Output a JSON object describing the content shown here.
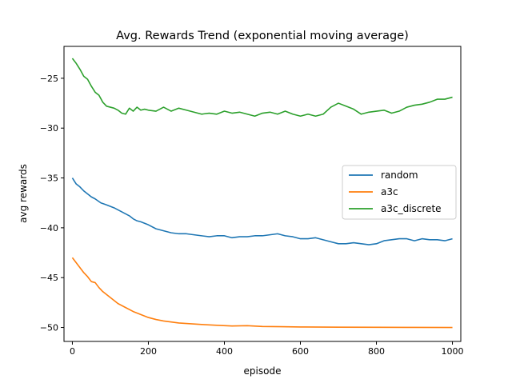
{
  "chart_data": {
    "type": "line",
    "title": "Avg. Rewards Trend (exponential moving average)",
    "xlabel": "episode",
    "ylabel": "avg rewards",
    "xlim": [
      -22,
      1022
    ],
    "ylim": [
      -51.4,
      -21.8
    ],
    "xticks": [
      0,
      200,
      400,
      600,
      800,
      1000
    ],
    "xtick_labels": [
      "0",
      "200",
      "400",
      "600",
      "800",
      "1000"
    ],
    "yticks": [
      -50,
      -45,
      -40,
      -35,
      -30,
      -25
    ],
    "ytick_labels": [
      "−50",
      "−45",
      "−40",
      "−35",
      "−30",
      "−25"
    ],
    "grid": false,
    "legend": "center-right",
    "series": [
      {
        "name": "random",
        "color": "#1f77b4",
        "x": [
          0,
          10,
          20,
          30,
          40,
          50,
          60,
          75,
          90,
          110,
          130,
          150,
          160,
          170,
          180,
          200,
          220,
          240,
          260,
          280,
          300,
          320,
          340,
          360,
          380,
          400,
          420,
          440,
          460,
          480,
          500,
          520,
          540,
          560,
          580,
          600,
          620,
          640,
          660,
          680,
          700,
          720,
          740,
          760,
          780,
          800,
          820,
          840,
          860,
          880,
          900,
          920,
          940,
          960,
          980,
          1000
        ],
        "y": [
          -35,
          -35.6,
          -35.9,
          -36.3,
          -36.6,
          -36.9,
          -37.1,
          -37.5,
          -37.7,
          -38.0,
          -38.4,
          -38.8,
          -39.1,
          -39.3,
          -39.4,
          -39.7,
          -40.1,
          -40.3,
          -40.5,
          -40.6,
          -40.6,
          -40.7,
          -40.8,
          -40.9,
          -40.8,
          -40.8,
          -41.0,
          -40.9,
          -40.9,
          -40.8,
          -40.8,
          -40.7,
          -40.6,
          -40.8,
          -40.9,
          -41.1,
          -41.1,
          -41.0,
          -41.2,
          -41.4,
          -41.6,
          -41.6,
          -41.5,
          -41.6,
          -41.7,
          -41.6,
          -41.3,
          -41.2,
          -41.1,
          -41.1,
          -41.3,
          -41.1,
          -41.2,
          -41.2,
          -41.3,
          -41.1
        ]
      },
      {
        "name": "a3c",
        "color": "#ff7f0e",
        "x": [
          0,
          10,
          20,
          30,
          40,
          50,
          60,
          70,
          80,
          100,
          120,
          140,
          160,
          180,
          200,
          220,
          240,
          260,
          280,
          300,
          340,
          380,
          420,
          460,
          500,
          550,
          600,
          700,
          800,
          900,
          1000
        ],
        "y": [
          -43,
          -43.5,
          -44.0,
          -44.5,
          -44.9,
          -45.4,
          -45.5,
          -46.0,
          -46.4,
          -47.0,
          -47.6,
          -48.0,
          -48.4,
          -48.7,
          -49.0,
          -49.2,
          -49.35,
          -49.45,
          -49.55,
          -49.6,
          -49.7,
          -49.78,
          -49.85,
          -49.82,
          -49.9,
          -49.92,
          -49.95,
          -49.97,
          -49.98,
          -49.99,
          -50.0
        ]
      },
      {
        "name": "a3c_discrete",
        "color": "#2ca02c",
        "x": [
          0,
          10,
          20,
          30,
          40,
          50,
          60,
          70,
          80,
          90,
          100,
          110,
          120,
          130,
          140,
          150,
          160,
          170,
          180,
          190,
          200,
          220,
          240,
          260,
          280,
          300,
          320,
          340,
          360,
          380,
          400,
          420,
          440,
          460,
          480,
          500,
          520,
          540,
          560,
          580,
          600,
          620,
          640,
          660,
          680,
          700,
          720,
          740,
          760,
          780,
          800,
          820,
          840,
          860,
          880,
          900,
          920,
          940,
          960,
          980,
          1000
        ],
        "y": [
          -23,
          -23.5,
          -24.1,
          -24.8,
          -25.1,
          -25.8,
          -26.4,
          -26.7,
          -27.4,
          -27.8,
          -27.9,
          -28.0,
          -28.2,
          -28.5,
          -28.6,
          -28.0,
          -28.3,
          -27.9,
          -28.2,
          -28.1,
          -28.2,
          -28.3,
          -27.9,
          -28.3,
          -28.0,
          -28.2,
          -28.4,
          -28.6,
          -28.5,
          -28.6,
          -28.3,
          -28.5,
          -28.4,
          -28.6,
          -28.8,
          -28.5,
          -28.4,
          -28.6,
          -28.3,
          -28.6,
          -28.8,
          -28.6,
          -28.8,
          -28.6,
          -27.9,
          -27.5,
          -27.8,
          -28.1,
          -28.6,
          -28.4,
          -28.3,
          -28.2,
          -28.5,
          -28.3,
          -27.9,
          -27.7,
          -27.6,
          -27.4,
          -27.1,
          -27.1,
          -26.9
        ]
      }
    ]
  }
}
